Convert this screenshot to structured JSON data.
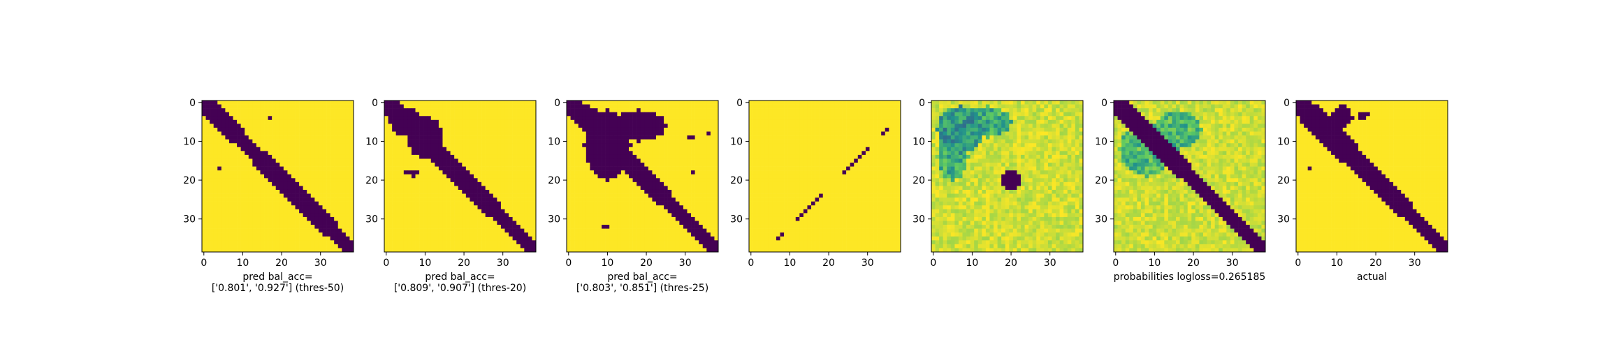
{
  "colors": {
    "purple": "#440154",
    "yellow": "#fde725",
    "axis": "#000000"
  },
  "chart_data": [
    {
      "type": "heatmap",
      "matrix_size": 39,
      "xticks": [
        "0",
        "10",
        "20",
        "30"
      ],
      "yticks": [
        "0",
        "10",
        "20",
        "30"
      ],
      "xlabel": [
        "pred bal_acc=",
        "['0.801', '0.927'] (thres-50)"
      ],
      "render": "diag",
      "band": [
        [
          0,
          0,
          3
        ],
        [
          4,
          0,
          3
        ],
        [
          8,
          0,
          3
        ],
        [
          12,
          0,
          2
        ],
        [
          20,
          0,
          3
        ],
        [
          30,
          0,
          3
        ],
        [
          38,
          0,
          2
        ]
      ],
      "extra_cells": [
        [
          17,
          4
        ],
        [
          4,
          17
        ]
      ]
    },
    {
      "type": "heatmap",
      "matrix_size": 39,
      "xticks": [
        "0",
        "10",
        "20",
        "30"
      ],
      "yticks": [
        "0",
        "10",
        "20",
        "30"
      ],
      "xlabel": [
        "pred bal_acc=",
        "['0.809', '0.907'] (thres-20)"
      ],
      "render": "diag",
      "band": [
        [
          0,
          0,
          3
        ],
        [
          10,
          0,
          3
        ],
        [
          20,
          0,
          3
        ],
        [
          38,
          0,
          2
        ]
      ],
      "blobs": [
        {
          "cx": 10,
          "cy": 9,
          "rx": 4.5,
          "ry": 5.5
        },
        {
          "cx": 5,
          "cy": 5,
          "rx": 4,
          "ry": 3.5
        }
      ],
      "extra_cells": [
        [
          18,
          5
        ],
        [
          18,
          6
        ],
        [
          18,
          7
        ],
        [
          19,
          7
        ],
        [
          18,
          8
        ]
      ]
    },
    {
      "type": "heatmap",
      "matrix_size": 39,
      "xticks": [
        "0",
        "10",
        "20",
        "30"
      ],
      "yticks": [
        "0",
        "10",
        "20",
        "30"
      ],
      "xlabel": [
        "pred bal_acc=",
        "['0.803', '0.851'] (thres-25)"
      ],
      "render": "diag",
      "band": [
        [
          0,
          0,
          3
        ],
        [
          15,
          0,
          3
        ],
        [
          38,
          0,
          2
        ]
      ],
      "blobs": [
        {
          "cx": 10,
          "cy": 11,
          "rx": 6,
          "ry": 9
        },
        {
          "cx": 18,
          "cy": 6,
          "rx": 7,
          "ry": 4
        },
        {
          "cx": 5,
          "cy": 4,
          "rx": 4,
          "ry": 3
        }
      ],
      "extra_cells": [
        [
          9,
          31
        ],
        [
          9,
          32
        ],
        [
          18,
          32
        ],
        [
          8,
          36
        ],
        [
          32,
          9
        ],
        [
          32,
          10
        ],
        [
          18,
          9
        ]
      ]
    },
    {
      "type": "heatmap",
      "matrix_size": 39,
      "xticks": [
        "0",
        "10",
        "20",
        "30"
      ],
      "yticks": [],
      "xlabel": [],
      "render": "line",
      "line_cells": [
        [
          7,
          35
        ],
        [
          8,
          34
        ],
        [
          12,
          30
        ],
        [
          13,
          29
        ],
        [
          14,
          28
        ],
        [
          15,
          27
        ],
        [
          16,
          26
        ],
        [
          17,
          25
        ],
        [
          18,
          24
        ],
        [
          24,
          18
        ],
        [
          25,
          17
        ],
        [
          26,
          16
        ],
        [
          27,
          15
        ],
        [
          28,
          14
        ],
        [
          29,
          13
        ],
        [
          30,
          12
        ],
        [
          34,
          8
        ],
        [
          35,
          7
        ]
      ]
    },
    {
      "type": "heatmap",
      "matrix_size": 39,
      "xticks": [
        "0",
        "10",
        "20",
        "30"
      ],
      "yticks": [],
      "xlabel": [],
      "render": "prob",
      "blobs": [
        {
          "cx": 7,
          "cy": 7,
          "rx": 6,
          "ry": 6,
          "v": 0.35
        },
        {
          "cx": 14,
          "cy": 5,
          "rx": 6,
          "ry": 4,
          "v": 0.45
        },
        {
          "cx": 5,
          "cy": 14,
          "rx": 4,
          "ry": 6,
          "v": 0.45
        }
      ],
      "dark_spot": {
        "cx": 20,
        "cy": 20,
        "rx": 2.5,
        "ry": 2.5
      }
    },
    {
      "type": "heatmap",
      "matrix_size": 39,
      "xticks": [
        "0",
        "10",
        "20",
        "30"
      ],
      "yticks": [
        "0",
        "10",
        "20",
        "30"
      ],
      "xlabel": [
        "probabilities logloss=0.265185"
      ],
      "render": "probdiag",
      "band": [
        [
          0,
          0,
          3
        ],
        [
          38,
          0,
          2
        ]
      ],
      "blobs": [
        {
          "cx": 8,
          "cy": 12,
          "rx": 7,
          "ry": 7,
          "v": 0.5
        },
        {
          "cx": 16,
          "cy": 7,
          "rx": 6,
          "ry": 5,
          "v": 0.5
        }
      ]
    },
    {
      "type": "heatmap",
      "matrix_size": 39,
      "xticks": [
        "0",
        "10",
        "20",
        "30"
      ],
      "yticks": [
        "0",
        "10",
        "20",
        "30"
      ],
      "xlabel": [
        "actual"
      ],
      "render": "diag",
      "band": [
        [
          0,
          0,
          3
        ],
        [
          10,
          0,
          4
        ],
        [
          20,
          0,
          3
        ],
        [
          38,
          0,
          2
        ]
      ],
      "blobs": [
        {
          "cx": 3,
          "cy": 4,
          "rx": 2.5,
          "ry": 3
        },
        {
          "cx": 11,
          "cy": 4,
          "rx": 3,
          "ry": 2.5
        }
      ],
      "extra_cells": [
        [
          1,
          11
        ],
        [
          1,
          12
        ],
        [
          2,
          12
        ],
        [
          2,
          13
        ],
        [
          3,
          16
        ],
        [
          3,
          17
        ],
        [
          4,
          16
        ],
        [
          4,
          17
        ],
        [
          3,
          18
        ],
        [
          17,
          3
        ]
      ]
    }
  ]
}
